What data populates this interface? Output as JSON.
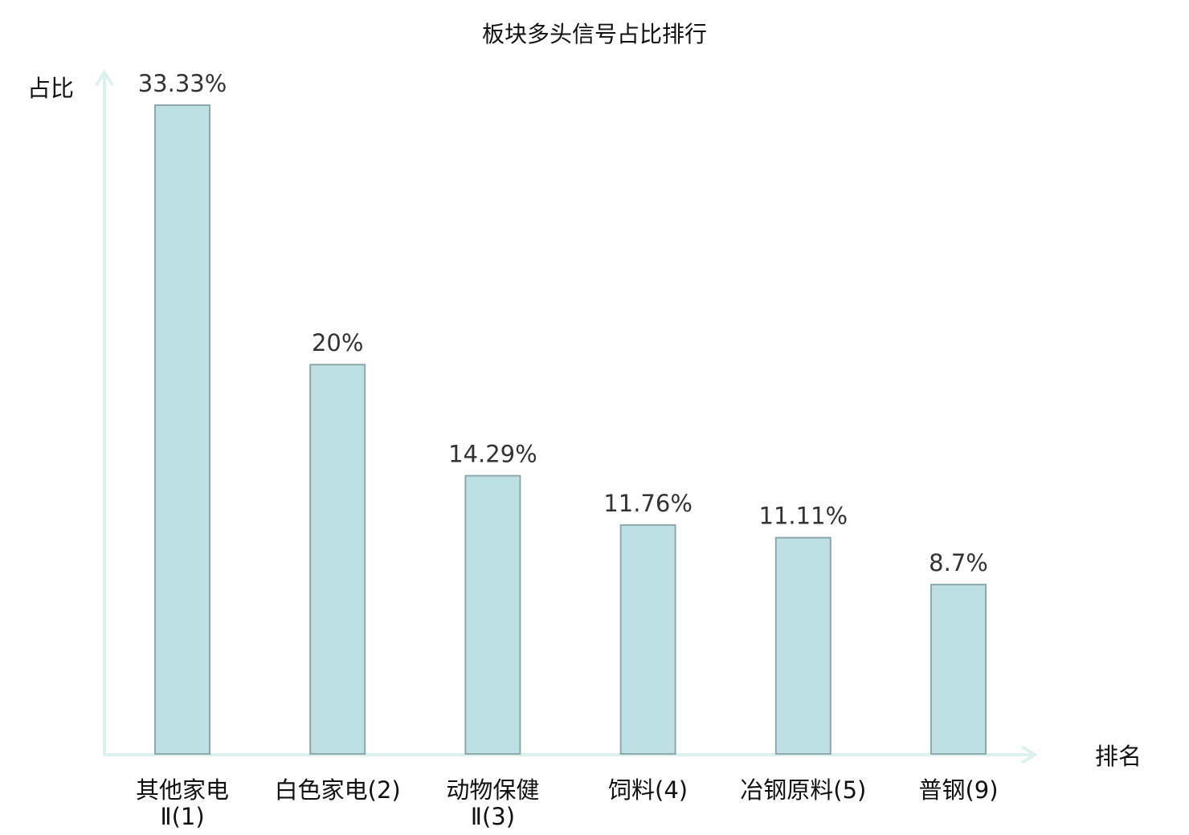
{
  "chart_data": {
    "type": "bar",
    "title": "板块多头信号占比排行",
    "xlabel": "排名",
    "ylabel": "占比",
    "categories": [
      {
        "lines": [
          "其他家电",
          "Ⅱ(1)"
        ],
        "highlight": false
      },
      {
        "lines": [
          "白色家电(2)"
        ],
        "highlight": false
      },
      {
        "lines": [
          "动物保健",
          "Ⅱ(3)"
        ],
        "highlight": false
      },
      {
        "lines": [
          "饲料(4)"
        ],
        "highlight": false
      },
      {
        "lines": [
          "冶钢原料(5)"
        ],
        "highlight": false
      },
      {
        "lines": [
          "普钢(9)"
        ],
        "highlight": true
      }
    ],
    "values": [
      33.33,
      20,
      14.29,
      11.76,
      11.11,
      8.7
    ],
    "value_labels": [
      "33.33%",
      "20%",
      "14.29%",
      "11.76%",
      "11.11%",
      "8.7%"
    ],
    "ylim": [
      0,
      33.33
    ],
    "grid": false,
    "colors": {
      "bar": "#bce0e3",
      "bar_edge": "#8ea9aa",
      "axis": "#dcf0ee",
      "highlight": "#ee1111"
    }
  }
}
